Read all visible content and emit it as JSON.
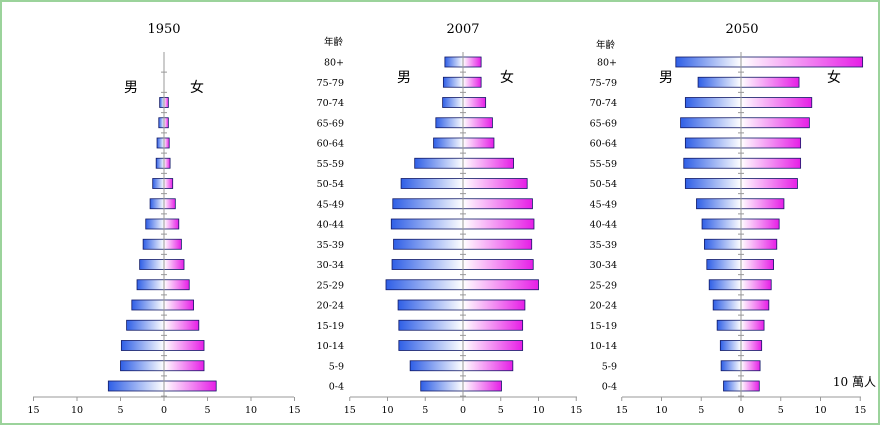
{
  "colors": {
    "frame": "#9bd39b",
    "male_light": "#ffffff",
    "male_dark": "#2f5fe6",
    "female_light": "#ffffff",
    "female_dark": "#e61ee6"
  },
  "chart_data": [
    {
      "type": "bar",
      "orientation": "horizontal-population-pyramid",
      "title": "1950",
      "male_label": "男",
      "female_label": "女",
      "categories": [
        "0-4",
        "5-9",
        "10-14",
        "15-19",
        "20-24",
        "25-29",
        "30-34",
        "35-39",
        "40-44",
        "45-49",
        "50-54",
        "55-59",
        "60-64",
        "65-69",
        "70-74",
        "75-79",
        "80+"
      ],
      "series": [
        {
          "name": "男",
          "values": [
            6.4,
            5.0,
            4.9,
            4.3,
            3.7,
            3.1,
            2.8,
            2.4,
            2.1,
            1.6,
            1.3,
            0.9,
            0.8,
            0.6,
            0.5,
            0,
            0
          ]
        },
        {
          "name": "女",
          "values": [
            6.0,
            4.6,
            4.6,
            4.0,
            3.4,
            2.9,
            2.3,
            2.0,
            1.7,
            1.3,
            1.0,
            0.7,
            0.6,
            0.5,
            0.5,
            0,
            0
          ]
        }
      ],
      "xlim": [
        -15,
        15
      ],
      "xticks": [
        "15",
        "10",
        "5",
        "0",
        "5",
        "10",
        "15"
      ]
    },
    {
      "type": "bar",
      "orientation": "horizontal-population-pyramid",
      "title": "2007",
      "age_header": "年齡",
      "male_label": "男",
      "female_label": "女",
      "categories": [
        "0-4",
        "5-9",
        "10-14",
        "15-19",
        "20-24",
        "25-29",
        "30-34",
        "35-39",
        "40-44",
        "45-49",
        "50-54",
        "55-59",
        "60-64",
        "65-69",
        "70-74",
        "75-79",
        "80+"
      ],
      "series": [
        {
          "name": "男",
          "values": [
            5.6,
            7.0,
            8.5,
            8.5,
            8.6,
            10.2,
            9.4,
            9.2,
            9.5,
            9.3,
            8.2,
            6.4,
            3.9,
            3.6,
            2.7,
            2.6,
            2.4
          ]
        },
        {
          "name": "女",
          "values": [
            5.1,
            6.6,
            7.9,
            7.9,
            8.2,
            10.0,
            9.3,
            9.1,
            9.4,
            9.2,
            8.5,
            6.7,
            4.1,
            3.9,
            3.0,
            2.4,
            2.4
          ]
        }
      ],
      "xlim": [
        -15,
        15
      ],
      "xticks": [
        "15",
        "10",
        "5",
        "0",
        "5",
        "10",
        "15"
      ]
    },
    {
      "type": "bar",
      "orientation": "horizontal-population-pyramid",
      "title": "2050",
      "age_header": "年齡",
      "male_label": "男",
      "female_label": "女",
      "unit": "10 萬人",
      "categories": [
        "0-4",
        "5-9",
        "10-14",
        "15-19",
        "20-24",
        "25-29",
        "30-34",
        "35-39",
        "40-44",
        "45-49",
        "50-54",
        "55-59",
        "60-64",
        "65-69",
        "70-74",
        "75-79",
        "80+"
      ],
      "series": [
        {
          "name": "男",
          "values": [
            2.2,
            2.5,
            2.6,
            3.0,
            3.5,
            4.0,
            4.3,
            4.6,
            4.9,
            5.6,
            7.0,
            7.2,
            7.0,
            7.6,
            7.0,
            5.4,
            8.2
          ]
        },
        {
          "name": "女",
          "values": [
            2.3,
            2.4,
            2.6,
            2.9,
            3.5,
            3.8,
            4.1,
            4.5,
            4.8,
            5.4,
            7.1,
            7.5,
            7.5,
            8.6,
            8.9,
            7.3,
            15.3
          ]
        }
      ],
      "xlim": [
        -15,
        15
      ],
      "xticks": [
        "15",
        "10",
        "5",
        "0",
        "5",
        "10",
        "15"
      ]
    }
  ]
}
